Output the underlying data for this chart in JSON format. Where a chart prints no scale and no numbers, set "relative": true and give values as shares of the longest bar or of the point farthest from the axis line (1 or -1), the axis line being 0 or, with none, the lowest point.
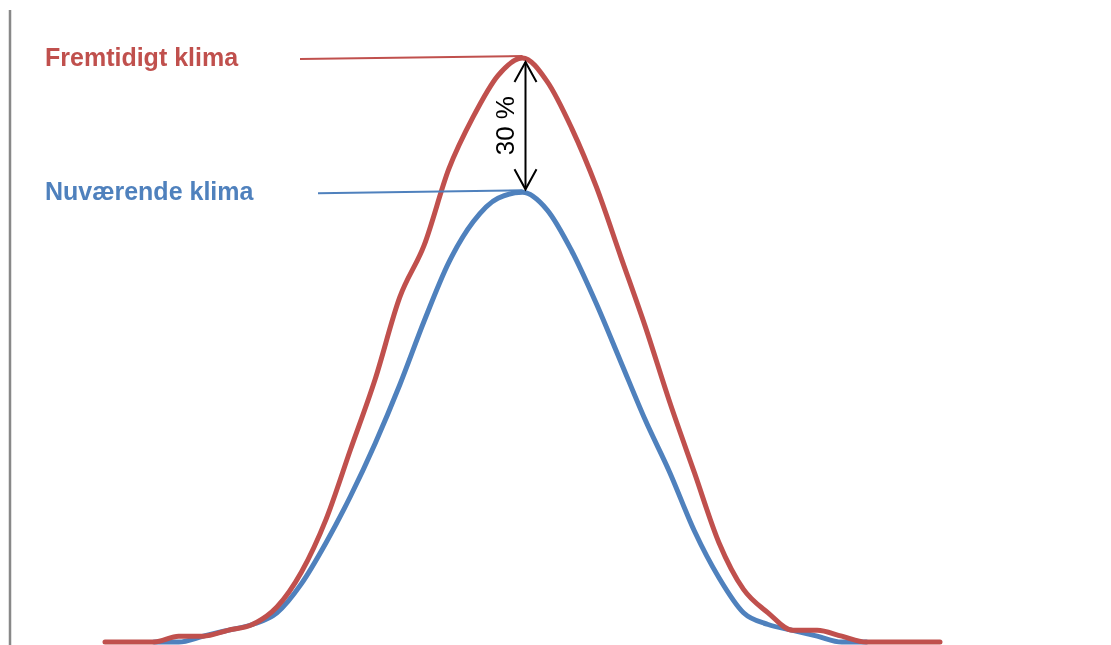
{
  "chart_data": {
    "type": "line",
    "relative": true,
    "categories": [
      null,
      null,
      null,
      null,
      null,
      null,
      null,
      null,
      null,
      null,
      null,
      null,
      null,
      null,
      null,
      null,
      null,
      null,
      null,
      null,
      null,
      null,
      null,
      null,
      null,
      null,
      null,
      null,
      null,
      null,
      null,
      null,
      null,
      null,
      null
    ],
    "series": [
      {
        "name": "Fremtidigt klima",
        "color": "#c0504d",
        "values": [
          0,
          0,
          0,
          0.01,
          0.01,
          0.02,
          0.03,
          0.06,
          0.12,
          0.21,
          0.33,
          0.45,
          0.59,
          0.68,
          0.81,
          0.9,
          0.97,
          1,
          0.96,
          0.88,
          0.78,
          0.66,
          0.54,
          0.41,
          0.29,
          0.17,
          0.09,
          0.05,
          0.02,
          0.02,
          0.01,
          0,
          0,
          0,
          0
        ]
      },
      {
        "name": "Nuværende klima",
        "color": "#4f81bd",
        "values": [
          null,
          null,
          0,
          0,
          0.01,
          0.02,
          0.03,
          0.05,
          0.1,
          0.17,
          0.25,
          0.34,
          0.44,
          0.55,
          0.65,
          0.72,
          0.76,
          0.77,
          0.74,
          0.67,
          0.58,
          0.48,
          0.38,
          0.29,
          0.19,
          0.11,
          0.05,
          0.03,
          0.02,
          0.01,
          0,
          0,
          null,
          null,
          null
        ]
      }
    ],
    "annotations": [
      "30 %"
    ]
  }
}
